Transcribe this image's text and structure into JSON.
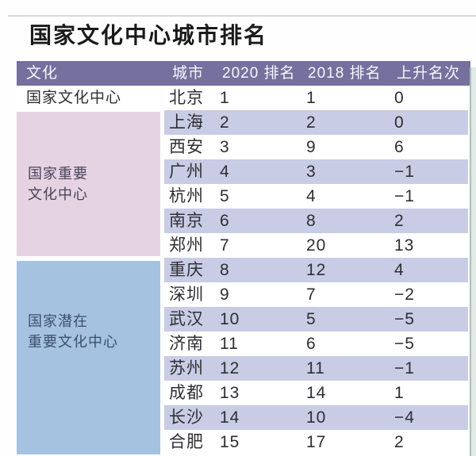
{
  "page": {
    "title": "国家文化中心城市排名"
  },
  "colors": {
    "header_bg": "#75709E",
    "header_text": "#F7F7FB",
    "row_stripe": "#C9CCE5",
    "group_national_bg": "#FFFFFF",
    "group_important_bg": "#E5D3E3",
    "group_potential_bg": "#A5C3E1",
    "group_important_text": "#4A4458",
    "group_potential_text": "#3C4F6B",
    "right_strip_line": "#A9C0BA",
    "right_strip_fill": "#E1EAE7"
  },
  "table": {
    "headers": [
      "文化",
      "城市",
      "2020 排名",
      "2018 排名",
      "上升名次"
    ],
    "groups": [
      {
        "label": "国家文化中心",
        "lines": [
          "国家文化中心"
        ],
        "row_count": 1
      },
      {
        "label": "国家重要文化中心",
        "lines": [
          "国家重要",
          "文化中心"
        ],
        "row_count": 6
      },
      {
        "label": "国家潜在重要文化中心",
        "lines": [
          "国家潜在",
          "重要文化中心"
        ],
        "row_count": 8
      }
    ]
  },
  "chart_data": {
    "type": "table",
    "title": "国家文化中心城市排名",
    "columns": [
      "文化",
      "城市",
      "2020排名",
      "2018排名",
      "上升名次"
    ],
    "rows": [
      {
        "group": "国家文化中心",
        "city": "北京",
        "rank_2020": 1,
        "rank_2018": 1,
        "change": 0
      },
      {
        "group": "国家重要文化中心",
        "city": "上海",
        "rank_2020": 2,
        "rank_2018": 2,
        "change": 0
      },
      {
        "group": "国家重要文化中心",
        "city": "西安",
        "rank_2020": 3,
        "rank_2018": 9,
        "change": 6
      },
      {
        "group": "国家重要文化中心",
        "city": "广州",
        "rank_2020": 4,
        "rank_2018": 3,
        "change": -1
      },
      {
        "group": "国家重要文化中心",
        "city": "杭州",
        "rank_2020": 5,
        "rank_2018": 4,
        "change": -1
      },
      {
        "group": "国家重要文化中心",
        "city": "南京",
        "rank_2020": 6,
        "rank_2018": 8,
        "change": 2
      },
      {
        "group": "国家重要文化中心",
        "city": "郑州",
        "rank_2020": 7,
        "rank_2018": 20,
        "change": 13
      },
      {
        "group": "国家潜在重要文化中心",
        "city": "重庆",
        "rank_2020": 8,
        "rank_2018": 12,
        "change": 4
      },
      {
        "group": "国家潜在重要文化中心",
        "city": "深圳",
        "rank_2020": 9,
        "rank_2018": 7,
        "change": -2
      },
      {
        "group": "国家潜在重要文化中心",
        "city": "武汉",
        "rank_2020": 10,
        "rank_2018": 5,
        "change": -5
      },
      {
        "group": "国家潜在重要文化中心",
        "city": "济南",
        "rank_2020": 11,
        "rank_2018": 6,
        "change": -5
      },
      {
        "group": "国家潜在重要文化中心",
        "city": "苏州",
        "rank_2020": 12,
        "rank_2018": 11,
        "change": -1
      },
      {
        "group": "国家潜在重要文化中心",
        "city": "成都",
        "rank_2020": 13,
        "rank_2018": 14,
        "change": 1
      },
      {
        "group": "国家潜在重要文化中心",
        "city": "长沙",
        "rank_2020": 14,
        "rank_2018": 10,
        "change": -4
      },
      {
        "group": "国家潜在重要文化中心",
        "city": "合肥",
        "rank_2020": 15,
        "rank_2018": 17,
        "change": 2
      }
    ]
  }
}
